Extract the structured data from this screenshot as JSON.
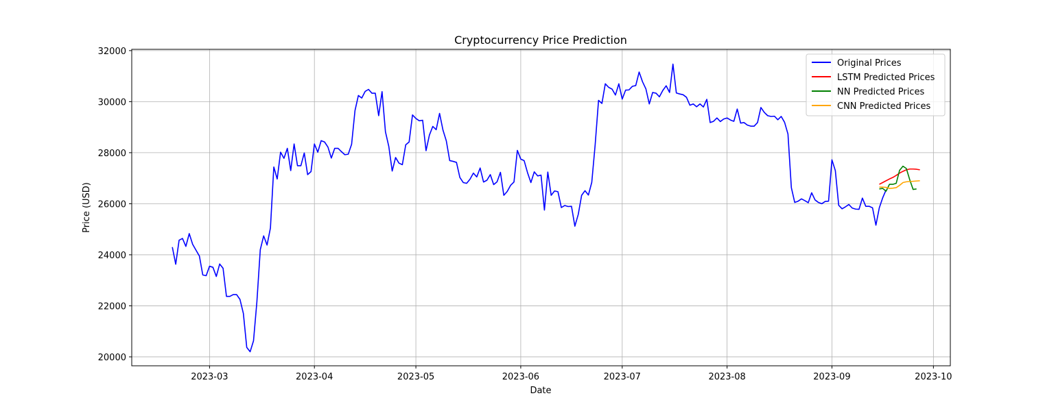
{
  "chart_data": {
    "type": "line",
    "title": "Cryptocurrency Price Prediction",
    "xlabel": "Date",
    "ylabel": "Price (USD)",
    "x_type": "date",
    "xlim": [
      "2023-02-06",
      "2023-10-06"
    ],
    "ylim": [
      19650,
      32050
    ],
    "x_ticks": [
      {
        "value": "2023-03-01",
        "label": "2023-03"
      },
      {
        "value": "2023-04-01",
        "label": "2023-04"
      },
      {
        "value": "2023-05-01",
        "label": "2023-05"
      },
      {
        "value": "2023-06-01",
        "label": "2023-06"
      },
      {
        "value": "2023-07-01",
        "label": "2023-07"
      },
      {
        "value": "2023-08-01",
        "label": "2023-08"
      },
      {
        "value": "2023-09-01",
        "label": "2023-09"
      },
      {
        "value": "2023-10-01",
        "label": "2023-10"
      }
    ],
    "y_ticks": [
      20000,
      22000,
      24000,
      26000,
      28000,
      30000,
      32000
    ],
    "grid": true,
    "legend_position": "top-right",
    "series": [
      {
        "name": "Original Prices",
        "color": "#0000ff",
        "start_date": "2023-02-18",
        "values": [
          24300,
          23630,
          24570,
          24640,
          24330,
          24830,
          24410,
          24180,
          23950,
          23210,
          23180,
          23550,
          23510,
          23150,
          23640,
          23470,
          22370,
          22370,
          22440,
          22440,
          22250,
          21700,
          20370,
          20200,
          20630,
          22160,
          24200,
          24740,
          24380,
          25050,
          27440,
          26970,
          28020,
          27780,
          28170,
          27300,
          28340,
          27490,
          27490,
          27990,
          27140,
          27260,
          28340,
          28020,
          28470,
          28420,
          28220,
          27790,
          28170,
          28170,
          28040,
          27920,
          27940,
          28330,
          29650,
          30240,
          30140,
          30400,
          30480,
          30330,
          30330,
          29450,
          30390,
          28820,
          28240,
          27280,
          27810,
          27590,
          27530,
          28310,
          28420,
          29480,
          29340,
          29250,
          29270,
          28080,
          28690,
          29030,
          28900,
          29540,
          28890,
          28460,
          27690,
          27660,
          27620,
          27030,
          26830,
          26800,
          26960,
          27200,
          27050,
          27400,
          26850,
          26920,
          27140,
          26750,
          26860,
          27230,
          26330,
          26480,
          26720,
          26850,
          28090,
          27750,
          27690,
          27220,
          26830,
          27250,
          27090,
          27120,
          25750,
          27240,
          26330,
          26500,
          26470,
          25850,
          25930,
          25890,
          25900,
          25120,
          25580,
          26330,
          26510,
          26340,
          26840,
          28310,
          30050,
          29930,
          30700,
          30560,
          30490,
          30260,
          30700,
          30100,
          30450,
          30460,
          30600,
          30630,
          31160,
          30780,
          30500,
          29910,
          30360,
          30330,
          30190,
          30440,
          30620,
          30360,
          31470,
          30340,
          30300,
          30270,
          30170,
          29860,
          29910,
          29800,
          29910,
          29790,
          30090,
          29180,
          29230,
          29360,
          29220,
          29320,
          29360,
          29280,
          29230,
          29710,
          29160,
          29180,
          29080,
          29040,
          29040,
          29180,
          29770,
          29580,
          29450,
          29420,
          29430,
          29290,
          29420,
          29190,
          28730,
          26630,
          26050,
          26100,
          26190,
          26120,
          26040,
          26430,
          26150,
          26050,
          26000,
          26090,
          26100,
          27720,
          27300,
          25940,
          25800,
          25880,
          25970,
          25830,
          25790,
          25780,
          26220,
          25900,
          25900,
          25840,
          25160,
          25840,
          26230,
          26540
        ]
      },
      {
        "name": "LSTM Predicted Prices",
        "color": "#ff0000",
        "start_date": "2023-09-15",
        "values": [
          26760,
          26830,
          26900,
          26970,
          27030,
          27110,
          27200,
          27270,
          27330,
          27360,
          27360,
          27350,
          27330
        ]
      },
      {
        "name": "NN Predicted Prices",
        "color": "#008000",
        "start_date": "2023-09-15",
        "values": [
          26580,
          26600,
          26490,
          26760,
          26760,
          26800,
          27310,
          27470,
          27380,
          26940,
          26560,
          26580
        ]
      },
      {
        "name": "CNN Predicted Prices",
        "color": "#ffa500",
        "start_date": "2023-09-15",
        "values": [
          26650,
          26650,
          26640,
          26600,
          26610,
          26630,
          26720,
          26830,
          26860,
          26870,
          26880,
          26890,
          26900
        ]
      }
    ]
  }
}
